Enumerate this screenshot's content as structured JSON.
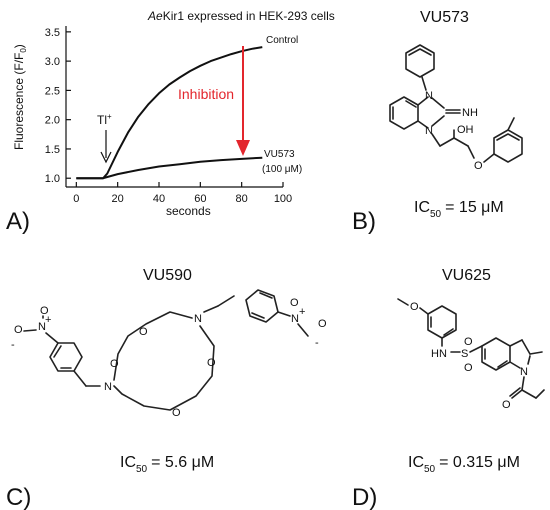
{
  "panels": {
    "a": {
      "letter": "A)",
      "title_italic": "Ae",
      "title_rest": "Kir1 expressed in HEK-293 cells",
      "ylabel": "Fluorescence (F/F0)",
      "xlabel": "seconds",
      "annot_tl": "Tl+",
      "annot_inhibition": "Inhibition",
      "series_labels": [
        "Control",
        "VU573",
        "(100 μM)"
      ]
    },
    "b": {
      "letter": "B)",
      "compound": "VU573",
      "ic50_value": "= 15 μM"
    },
    "c": {
      "letter": "C)",
      "compound": "VU590",
      "ic50_value": "= 5.6 μM"
    },
    "d": {
      "letter": "D)",
      "compound": "VU625",
      "ic50_value": "= 0.315 μM"
    }
  },
  "ic50_label": "IC",
  "ic50_sub": "50",
  "colors": {
    "inhibition": "#e3262d",
    "ink": "#111111"
  },
  "chart_data": {
    "type": "line",
    "title": "AeKir1 expressed in HEK-293 cells",
    "xlabel": "seconds",
    "ylabel": "Fluorescence (F/F0)",
    "xlim": [
      -5,
      100
    ],
    "ylim": [
      0.85,
      3.6
    ],
    "xticks": [
      0,
      20,
      40,
      60,
      80,
      100
    ],
    "yticks": [
      1.0,
      1.5,
      2.0,
      2.5,
      3.0,
      3.5
    ],
    "series": [
      {
        "name": "Control",
        "x": [
          0,
          5,
          10,
          13,
          15,
          20,
          25,
          30,
          35,
          40,
          45,
          50,
          55,
          60,
          65,
          70,
          75,
          80,
          85,
          90
        ],
        "y": [
          1.0,
          1.0,
          1.0,
          1.0,
          1.08,
          1.45,
          1.78,
          2.05,
          2.27,
          2.45,
          2.6,
          2.72,
          2.83,
          2.92,
          3.0,
          3.06,
          3.12,
          3.17,
          3.21,
          3.24
        ]
      },
      {
        "name": "VU573",
        "x": [
          0,
          5,
          10,
          13,
          15,
          20,
          30,
          40,
          50,
          60,
          70,
          80,
          90
        ],
        "y": [
          1.0,
          1.0,
          1.0,
          1.0,
          1.02,
          1.07,
          1.14,
          1.2,
          1.24,
          1.28,
          1.31,
          1.33,
          1.35
        ]
      }
    ]
  }
}
